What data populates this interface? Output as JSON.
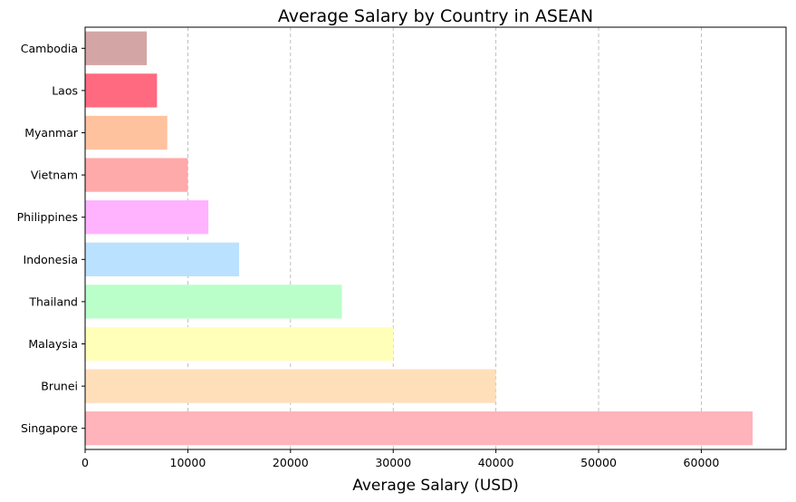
{
  "chart_data": {
    "type": "bar",
    "orientation": "horizontal",
    "title": "Average Salary by Country in ASEAN",
    "xlabel": "Average Salary (USD)",
    "ylabel": "",
    "categories": [
      "Singapore",
      "Brunei",
      "Malaysia",
      "Thailand",
      "Indonesia",
      "Philippines",
      "Vietnam",
      "Myanmar",
      "Laos",
      "Cambodia"
    ],
    "values": [
      65000,
      40000,
      30000,
      25000,
      15000,
      12000,
      10000,
      8000,
      7000,
      6000
    ],
    "colors": [
      "#ffb3ba",
      "#ffdfba",
      "#ffffba",
      "#baffc9",
      "#bae1ff",
      "#ffb3ff",
      "#ffaaaa",
      "#ffc29f",
      "#ff6a80",
      "#d4a5a5"
    ],
    "xlim": [
      0,
      68250
    ],
    "xticks": [
      0,
      10000,
      20000,
      30000,
      40000,
      50000,
      60000
    ],
    "xtick_labels": [
      "0",
      "10000",
      "20000",
      "30000",
      "40000",
      "50000",
      "60000"
    ],
    "grid": {
      "x": true,
      "y": false,
      "style": "dashed"
    }
  }
}
